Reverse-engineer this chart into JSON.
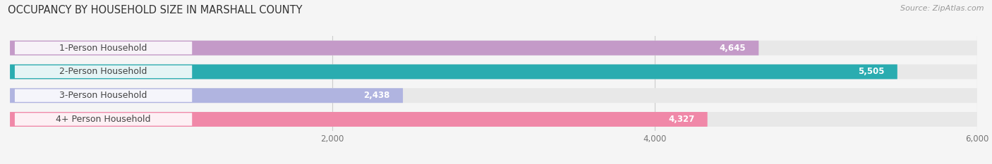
{
  "title": "OCCUPANCY BY HOUSEHOLD SIZE IN MARSHALL COUNTY",
  "source": "Source: ZipAtlas.com",
  "categories": [
    "1-Person Household",
    "2-Person Household",
    "3-Person Household",
    "4+ Person Household"
  ],
  "values": [
    4645,
    5505,
    2438,
    4327
  ],
  "bar_colors": [
    "#c49ac8",
    "#2aacb0",
    "#b0b4e0",
    "#f088a8"
  ],
  "bar_bg_color": "#e8e8e8",
  "xlim": [
    0,
    6000
  ],
  "xmin": 0,
  "xmax": 6000,
  "xticks": [
    2000,
    4000,
    6000
  ],
  "xtick_labels": [
    "2,000",
    "4,000",
    "6,000"
  ],
  "title_fontsize": 10.5,
  "source_fontsize": 8,
  "label_fontsize": 9,
  "value_fontsize": 8.5,
  "background_color": "#f5f5f5",
  "bar_height": 0.62,
  "rounding_size": 0.25
}
